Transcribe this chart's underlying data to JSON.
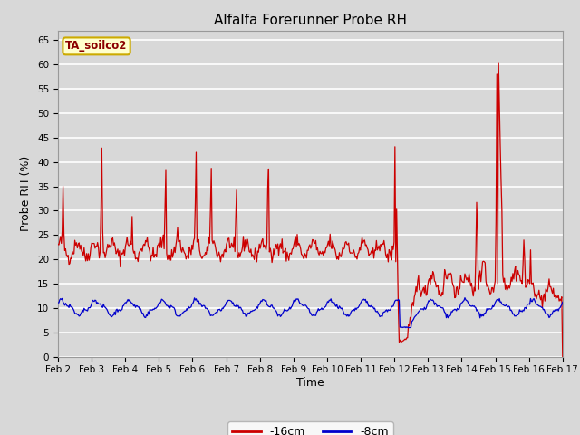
{
  "title": "Alfalfa Forerunner Probe RH",
  "xlabel": "Time",
  "ylabel": "Probe RH (%)",
  "ylim": [
    0,
    67
  ],
  "yticks": [
    0,
    5,
    10,
    15,
    20,
    25,
    30,
    35,
    40,
    45,
    50,
    55,
    60,
    65
  ],
  "x_tick_labels": [
    "Feb 2",
    "Feb 3",
    "Feb 4",
    "Feb 5",
    "Feb 6",
    "Feb 7",
    "Feb 8",
    "Feb 9",
    "Feb 10",
    "Feb 11",
    "Feb 12",
    "Feb 13",
    "Feb 14",
    "Feb 15",
    "Feb 16",
    "Feb 17"
  ],
  "background_color": "#d8d8d8",
  "plot_bg_color": "#d8d8d8",
  "grid_color": "#ffffff",
  "legend_label": "TA_soilco2",
  "legend_bg": "#ffffcc",
  "legend_border": "#ccaa00",
  "line1_color": "#cc0000",
  "line2_color": "#0000cc",
  "legend1_label": "-16cm",
  "legend2_label": "-8cm",
  "title_fontsize": 11,
  "axis_fontsize": 9,
  "tick_fontsize": 7.5
}
